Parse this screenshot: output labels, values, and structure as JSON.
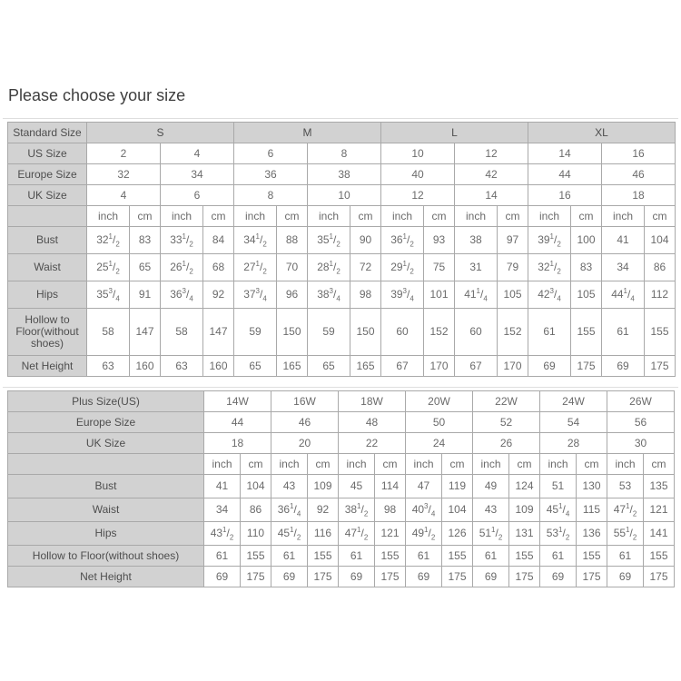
{
  "page": {
    "title": "Please choose your size"
  },
  "standard_table": {
    "corner_label": "Standard Size",
    "group_headers": [
      "S",
      "M",
      "L",
      "XL"
    ],
    "size_rows": [
      {
        "label": "US Size",
        "values": [
          "2",
          "4",
          "6",
          "8",
          "10",
          "12",
          "14",
          "16"
        ]
      },
      {
        "label": "Europe Size",
        "values": [
          "32",
          "34",
          "36",
          "38",
          "40",
          "42",
          "44",
          "46"
        ]
      },
      {
        "label": "UK Size",
        "values": [
          "4",
          "6",
          "8",
          "10",
          "12",
          "14",
          "16",
          "18"
        ]
      }
    ],
    "unit_labels": [
      "inch",
      "cm"
    ],
    "measure_rows": [
      {
        "label": "Bust",
        "values": [
          "32 1/2",
          "83",
          "33 1/2",
          "84",
          "34 1/2",
          "88",
          "35 1/2",
          "90",
          "36 1/2",
          "93",
          "38",
          "97",
          "39 1/2",
          "100",
          "41",
          "104"
        ]
      },
      {
        "label": "Waist",
        "values": [
          "25 1/2",
          "65",
          "26 1/2",
          "68",
          "27 1/2",
          "70",
          "28 1/2",
          "72",
          "29 1/2",
          "75",
          "31",
          "79",
          "32 1/2",
          "83",
          "34",
          "86"
        ]
      },
      {
        "label": "Hips",
        "values": [
          "35 3/4",
          "91",
          "36 3/4",
          "92",
          "37 3/4",
          "96",
          "38 3/4",
          "98",
          "39 3/4",
          "101",
          "41 1/4",
          "105",
          "42 3/4",
          "105",
          "44 1/4",
          "112"
        ]
      },
      {
        "label": "Hollow to Floor(without shoes)",
        "values": [
          "58",
          "147",
          "58",
          "147",
          "59",
          "150",
          "59",
          "150",
          "60",
          "152",
          "60",
          "152",
          "61",
          "155",
          "61",
          "155"
        ]
      },
      {
        "label": "Net Height",
        "values": [
          "63",
          "160",
          "63",
          "160",
          "65",
          "165",
          "65",
          "165",
          "67",
          "170",
          "67",
          "170",
          "69",
          "175",
          "69",
          "175"
        ]
      }
    ]
  },
  "plus_table": {
    "corner_label": "Plus Size(US)",
    "group_headers": [
      "14W",
      "16W",
      "18W",
      "20W",
      "22W",
      "24W",
      "26W"
    ],
    "size_rows": [
      {
        "label": "Europe Size",
        "values": [
          "44",
          "46",
          "48",
          "50",
          "52",
          "54",
          "56"
        ]
      },
      {
        "label": "UK Size",
        "values": [
          "18",
          "20",
          "22",
          "24",
          "26",
          "28",
          "30"
        ]
      }
    ],
    "unit_labels": [
      "inch",
      "cm"
    ],
    "measure_rows": [
      {
        "label": "Bust",
        "values": [
          "41",
          "104",
          "43",
          "109",
          "45",
          "114",
          "47",
          "119",
          "49",
          "124",
          "51",
          "130",
          "53",
          "135"
        ]
      },
      {
        "label": "Waist",
        "values": [
          "34",
          "86",
          "36 1/4",
          "92",
          "38 1/2",
          "98",
          "40 3/4",
          "104",
          "43",
          "109",
          "45 1/4",
          "115",
          "47 1/2",
          "121"
        ]
      },
      {
        "label": "Hips",
        "values": [
          "43 1/2",
          "110",
          "45 1/2",
          "116",
          "47 1/2",
          "121",
          "49 1/2",
          "126",
          "51 1/2",
          "131",
          "53 1/2",
          "136",
          "55 1/2",
          "141"
        ]
      },
      {
        "label": "Hollow to Floor(without shoes)",
        "values": [
          "61",
          "155",
          "61",
          "155",
          "61",
          "155",
          "61",
          "155",
          "61",
          "155",
          "61",
          "155",
          "61",
          "155"
        ]
      },
      {
        "label": "Net Height",
        "values": [
          "69",
          "175",
          "69",
          "175",
          "69",
          "175",
          "69",
          "175",
          "69",
          "175",
          "69",
          "175",
          "69",
          "175"
        ]
      }
    ]
  }
}
